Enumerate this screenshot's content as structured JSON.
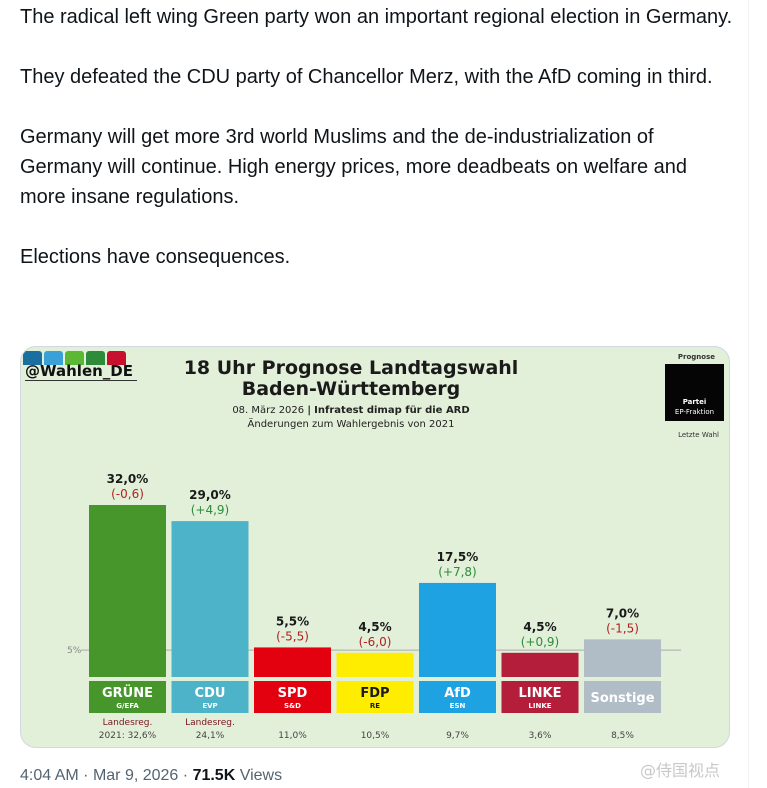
{
  "tweet": {
    "paragraphs": [
      "The radical left wing Green party won an important regional election in Germany.",
      "They defeated the CDU party of Chancellor Merz, with the AfD coming in third.",
      "Germany will get more 3rd world Muslims and the de-industrialization of Germany will continue. High energy prices, more deadbeats on welfare and more insane regulations.",
      "Elections have consequences."
    ],
    "time": "4:04 AM",
    "date": "Mar 9, 2026",
    "views_count": "71.5K",
    "views_label": "Views",
    "watermark": "@侍国视点"
  },
  "image": {
    "handle": "@Wahlen_DE",
    "logo_colors": [
      "#1a6fa0",
      "#3aa0d8",
      "#5ab832",
      "#2e8b3a",
      "#c8102e"
    ],
    "title_line1": "18 Uhr Prognose Landtagswahl",
    "title_line2": "Baden-Württemberg",
    "date": "08. März 2026",
    "separator": "|",
    "source": "Infratest dimap für die ARD",
    "changes_note": "Änderungen zum Wahlergebnis von 2021",
    "legend": {
      "prognose": "Prognose",
      "partei": "Partei",
      "fraktion": "EP-Fraktion",
      "letzte_wahl": "Letzte Wahl"
    }
  },
  "chart_data": {
    "type": "bar",
    "title": "18 Uhr Prognose Landtagswahl Baden-Württemberg",
    "ylim": [
      0,
      35
    ],
    "threshold": {
      "value": 5,
      "label": "5%"
    },
    "categories": [
      "GRÜNE",
      "CDU",
      "SPD",
      "FDP",
      "AfD",
      "LINKE",
      "Sonstige"
    ],
    "groups": [
      "G/EFA",
      "EVP",
      "S&D",
      "RE",
      "ESN",
      "LINKE",
      ""
    ],
    "values": [
      32.0,
      29.0,
      5.5,
      4.5,
      17.5,
      4.5,
      7.0
    ],
    "value_labels": [
      "32,0%",
      "29,0%",
      "5,5%",
      "4,5%",
      "17,5%",
      "4,5%",
      "7,0%"
    ],
    "change_labels": [
      "(-0,6)",
      "(+4,9)",
      "(-5,5)",
      "(-6,0)",
      "(+7,8)",
      "(+0,9)",
      "(-1,5)"
    ],
    "last_election_labels": [
      "2021: 32,6%",
      "24,1%",
      "11,0%",
      "10,5%",
      "9,7%",
      "3,6%",
      "8,5%"
    ],
    "last_election_prefix": "Landesreg.",
    "colors": [
      "#46962b",
      "#4db3c8",
      "#e3000f",
      "#ffed00",
      "#1ea2e1",
      "#b41e3a",
      "#b0bcc6"
    ],
    "name_colors": [
      "#46962b",
      "#4db3c8",
      "#e3000f",
      "#ffed00",
      "#1ea2e1",
      "#b41e3a",
      "#b0bcc6"
    ],
    "change_colors": [
      "#b22222",
      "#2e8b3a",
      "#b22222",
      "#b22222",
      "#2e8b3a",
      "#2e8b3a",
      "#b22222"
    ]
  }
}
